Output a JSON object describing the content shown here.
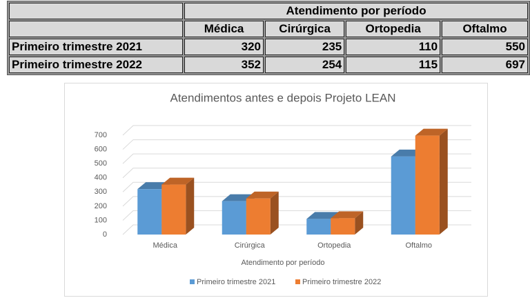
{
  "table": {
    "header": "Atendimento por período",
    "columns": [
      "Médica",
      "Cirúrgica",
      "Ortopedia",
      "Oftalmo"
    ],
    "rows": [
      [
        "Primeiro trimestre 2021",
        320,
        235,
        110,
        550
      ],
      [
        "Primeiro trimestre 2022",
        352,
        254,
        115,
        697
      ]
    ]
  },
  "chart_data": {
    "type": "bar",
    "title": "Atendimentos antes e depois Projeto LEAN",
    "x_label": "Atendimento por período",
    "categories": [
      "Médica",
      "Cirúrgica",
      "Ortopedia",
      "Oftalmo"
    ],
    "series": [
      {
        "name": "Primeiro trimestre 2021",
        "color": "#5b9bd5",
        "values": [
          320,
          235,
          110,
          550
        ]
      },
      {
        "name": "Primeiro trimestre 2022",
        "color": "#ed7d31",
        "values": [
          352,
          254,
          115,
          697
        ]
      }
    ],
    "ylim": [
      0,
      700
    ],
    "yticks": [
      0,
      100,
      200,
      300,
      400,
      500,
      600,
      700
    ],
    "grid": true
  }
}
